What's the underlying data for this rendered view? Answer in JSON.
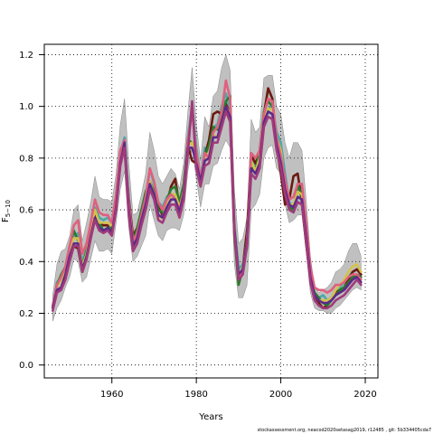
{
  "chart_data": {
    "type": "line",
    "xlabel": "Years",
    "ylabel": "F",
    "ylabel_sub": "5−10",
    "xlim": [
      1944,
      2023
    ],
    "ylim": [
      -0.05,
      1.24
    ],
    "xticks": [
      1960,
      1980,
      2000,
      2020
    ],
    "yticks": [
      0.0,
      0.2,
      0.4,
      0.6,
      0.8,
      1.0,
      1.2
    ],
    "ytick_labels": [
      "0.0",
      "0.2",
      "0.4",
      "0.6",
      "0.8",
      "1.0",
      "1.2"
    ],
    "grid": "dotted",
    "x": [
      1946,
      1947,
      1948,
      1949,
      1950,
      1951,
      1952,
      1953,
      1954,
      1955,
      1956,
      1957,
      1958,
      1959,
      1960,
      1961,
      1962,
      1963,
      1964,
      1965,
      1966,
      1967,
      1968,
      1969,
      1970,
      1971,
      1972,
      1973,
      1974,
      1975,
      1976,
      1977,
      1978,
      1979,
      1980,
      1981,
      1982,
      1983,
      1984,
      1985,
      1986,
      1987,
      1988,
      1989,
      1990,
      1991,
      1992,
      1993,
      1994,
      1995,
      1996,
      1997,
      1998,
      1999,
      2000,
      2001,
      2002,
      2003,
      2004,
      2005,
      2006,
      2007,
      2008,
      2009,
      2010,
      2011,
      2012,
      2013,
      2014,
      2015,
      2016,
      2017,
      2018,
      2019
    ],
    "band": {
      "upper": [
        0.27,
        0.39,
        0.44,
        0.45,
        0.5,
        0.6,
        0.62,
        0.48,
        0.55,
        0.63,
        0.73,
        0.65,
        0.64,
        0.64,
        0.63,
        0.74,
        0.93,
        1.03,
        0.78,
        0.58,
        0.59,
        0.66,
        0.74,
        0.9,
        0.83,
        0.73,
        0.7,
        0.73,
        0.76,
        0.74,
        0.68,
        0.78,
        0.98,
        1.15,
        0.93,
        0.79,
        0.96,
        0.92,
        1.04,
        1.06,
        1.15,
        1.2,
        1.14,
        0.68,
        0.47,
        0.49,
        0.57,
        0.95,
        0.9,
        0.92,
        1.11,
        1.12,
        1.12,
        1.0,
        0.97,
        0.86,
        0.8,
        0.86,
        0.86,
        0.83,
        0.64,
        0.42,
        0.3,
        0.28,
        0.29,
        0.3,
        0.32,
        0.36,
        0.37,
        0.39,
        0.44,
        0.47,
        0.47,
        0.42
      ],
      "lower": [
        0.17,
        0.22,
        0.25,
        0.3,
        0.34,
        0.41,
        0.4,
        0.32,
        0.34,
        0.41,
        0.48,
        0.44,
        0.44,
        0.45,
        0.43,
        0.55,
        0.68,
        0.75,
        0.53,
        0.4,
        0.42,
        0.46,
        0.5,
        0.62,
        0.56,
        0.5,
        0.48,
        0.52,
        0.53,
        0.53,
        0.52,
        0.58,
        0.75,
        0.84,
        0.72,
        0.61,
        0.7,
        0.7,
        0.77,
        0.78,
        0.83,
        0.87,
        0.84,
        0.39,
        0.26,
        0.26,
        0.31,
        0.6,
        0.62,
        0.66,
        0.8,
        0.84,
        0.85,
        0.76,
        0.74,
        0.62,
        0.55,
        0.56,
        0.58,
        0.58,
        0.44,
        0.28,
        0.22,
        0.21,
        0.21,
        0.2,
        0.2,
        0.22,
        0.23,
        0.25,
        0.27,
        0.29,
        0.3,
        0.29
      ]
    },
    "series": [
      {
        "color": "#4aa8a8",
        "values": [
          0.22,
          0.32,
          0.34,
          0.37,
          0.41,
          0.5,
          0.51,
          0.4,
          0.45,
          0.53,
          0.61,
          0.57,
          0.56,
          0.57,
          0.55,
          0.66,
          0.82,
          0.88,
          0.65,
          0.49,
          0.52,
          0.58,
          0.63,
          0.76,
          0.7,
          0.63,
          0.61,
          0.65,
          0.66,
          0.65,
          0.61,
          0.69,
          0.88,
          1.0,
          0.84,
          0.72,
          0.84,
          0.82,
          0.92,
          0.93,
          1.0,
          1.05,
          0.99,
          0.55,
          0.37,
          0.39,
          0.45,
          0.79,
          0.77,
          0.8,
          0.96,
          0.99,
          1.0,
          0.9,
          0.86,
          0.74,
          0.63,
          0.61,
          0.67,
          0.7,
          0.54,
          0.36,
          0.27,
          0.26,
          0.27,
          0.25,
          0.26,
          0.29,
          0.3,
          0.32,
          0.34,
          0.36,
          0.37,
          0.35
        ]
      },
      {
        "color": "#6b1a10",
        "values": [
          0.22,
          0.31,
          0.33,
          0.35,
          0.43,
          0.46,
          0.45,
          0.36,
          0.41,
          0.49,
          0.58,
          0.55,
          0.54,
          0.54,
          0.51,
          0.64,
          0.8,
          0.83,
          0.64,
          0.5,
          0.53,
          0.57,
          0.62,
          0.71,
          0.67,
          0.61,
          0.58,
          0.62,
          0.69,
          0.72,
          0.61,
          0.69,
          0.85,
          0.79,
          0.78,
          0.71,
          0.81,
          0.87,
          0.97,
          0.98,
          0.97,
          1.01,
          0.97,
          0.53,
          0.33,
          0.38,
          0.52,
          0.81,
          0.78,
          0.82,
          0.97,
          1.07,
          1.03,
          0.85,
          0.74,
          0.62,
          0.64,
          0.73,
          0.74,
          0.63,
          0.47,
          0.33,
          0.27,
          0.24,
          0.22,
          0.23,
          0.26,
          0.28,
          0.29,
          0.3,
          0.33,
          0.36,
          0.37,
          0.35
        ]
      },
      {
        "color": "#2a7a2a",
        "values": [
          0.23,
          0.31,
          0.35,
          0.38,
          0.46,
          0.52,
          0.48,
          0.38,
          0.44,
          0.55,
          0.6,
          0.55,
          0.52,
          0.53,
          0.53,
          0.63,
          0.81,
          0.85,
          0.62,
          0.48,
          0.53,
          0.6,
          0.67,
          0.71,
          0.67,
          0.6,
          0.59,
          0.64,
          0.68,
          0.69,
          0.63,
          0.7,
          0.87,
          0.86,
          0.8,
          0.7,
          0.81,
          0.85,
          0.92,
          0.91,
          0.95,
          1.02,
          1.04,
          0.5,
          0.31,
          0.37,
          0.48,
          0.77,
          0.75,
          0.83,
          0.98,
          1.02,
          1.0,
          0.87,
          0.77,
          0.67,
          0.61,
          0.6,
          0.7,
          0.65,
          0.5,
          0.34,
          0.28,
          0.26,
          0.24,
          0.23,
          0.25,
          0.27,
          0.29,
          0.3,
          0.32,
          0.34,
          0.35,
          0.34
        ]
      },
      {
        "color": "#d4c24c",
        "values": [
          0.22,
          0.3,
          0.33,
          0.37,
          0.44,
          0.49,
          0.49,
          0.38,
          0.43,
          0.52,
          0.6,
          0.55,
          0.55,
          0.55,
          0.54,
          0.64,
          0.81,
          0.84,
          0.62,
          0.47,
          0.51,
          0.57,
          0.63,
          0.71,
          0.66,
          0.57,
          0.57,
          0.62,
          0.66,
          0.66,
          0.61,
          0.67,
          0.85,
          0.86,
          0.79,
          0.69,
          0.81,
          0.82,
          0.89,
          0.88,
          0.93,
          1.0,
          0.97,
          0.54,
          0.34,
          0.38,
          0.48,
          0.79,
          0.75,
          0.8,
          0.95,
          0.99,
          0.99,
          0.88,
          0.83,
          0.7,
          0.62,
          0.62,
          0.67,
          0.66,
          0.52,
          0.35,
          0.27,
          0.25,
          0.25,
          0.25,
          0.26,
          0.29,
          0.31,
          0.33,
          0.36,
          0.38,
          0.39,
          0.36
        ]
      },
      {
        "color": "#e0607e",
        "values": [
          0.23,
          0.31,
          0.34,
          0.38,
          0.46,
          0.54,
          0.56,
          0.43,
          0.47,
          0.55,
          0.64,
          0.59,
          0.58,
          0.58,
          0.55,
          0.66,
          0.83,
          0.87,
          0.63,
          0.48,
          0.51,
          0.58,
          0.65,
          0.76,
          0.71,
          0.63,
          0.6,
          0.64,
          0.66,
          0.64,
          0.6,
          0.67,
          0.87,
          0.98,
          0.82,
          0.72,
          0.82,
          0.8,
          0.9,
          0.92,
          0.98,
          1.1,
          1.03,
          0.52,
          0.34,
          0.37,
          0.46,
          0.82,
          0.8,
          0.83,
          0.97,
          1.03,
          1.02,
          0.88,
          0.81,
          0.72,
          0.64,
          0.65,
          0.7,
          0.7,
          0.55,
          0.38,
          0.3,
          0.29,
          0.29,
          0.28,
          0.29,
          0.31,
          0.31,
          0.32,
          0.34,
          0.35,
          0.35,
          0.33
        ]
      },
      {
        "color": "#5a2a8a",
        "values": [
          0.22,
          0.29,
          0.3,
          0.35,
          0.42,
          0.47,
          0.47,
          0.37,
          0.42,
          0.5,
          0.57,
          0.53,
          0.52,
          0.53,
          0.51,
          0.61,
          0.78,
          0.86,
          0.6,
          0.46,
          0.49,
          0.56,
          0.62,
          0.7,
          0.66,
          0.58,
          0.57,
          0.61,
          0.64,
          0.64,
          0.59,
          0.66,
          0.84,
          0.84,
          0.78,
          0.71,
          0.79,
          0.8,
          0.88,
          0.88,
          0.94,
          1.0,
          0.96,
          0.53,
          0.35,
          0.37,
          0.48,
          0.76,
          0.74,
          0.78,
          0.94,
          0.98,
          0.97,
          0.85,
          0.78,
          0.68,
          0.62,
          0.61,
          0.65,
          0.64,
          0.5,
          0.34,
          0.27,
          0.25,
          0.24,
          0.24,
          0.25,
          0.27,
          0.28,
          0.29,
          0.31,
          0.33,
          0.34,
          0.32
        ]
      },
      {
        "color": "#a03a7a",
        "values": [
          0.21,
          0.28,
          0.29,
          0.33,
          0.4,
          0.46,
          0.46,
          0.36,
          0.41,
          0.49,
          0.56,
          0.52,
          0.51,
          0.52,
          0.5,
          0.6,
          0.77,
          0.84,
          0.58,
          0.44,
          0.47,
          0.54,
          0.6,
          0.68,
          0.64,
          0.56,
          0.55,
          0.59,
          0.62,
          0.62,
          0.57,
          0.64,
          0.82,
          1.02,
          0.76,
          0.69,
          0.77,
          0.78,
          0.86,
          0.86,
          0.92,
          0.98,
          0.94,
          0.51,
          0.33,
          0.35,
          0.46,
          0.74,
          0.72,
          0.76,
          0.92,
          0.96,
          0.95,
          0.83,
          0.76,
          0.66,
          0.6,
          0.59,
          0.63,
          0.62,
          0.48,
          0.32,
          0.25,
          0.23,
          0.22,
          0.22,
          0.23,
          0.25,
          0.26,
          0.27,
          0.29,
          0.31,
          0.33,
          0.31
        ]
      }
    ]
  },
  "footer_text": "stockassessment.org, neacod2020setasag2019, r12485 , git: 5b334405cda7"
}
